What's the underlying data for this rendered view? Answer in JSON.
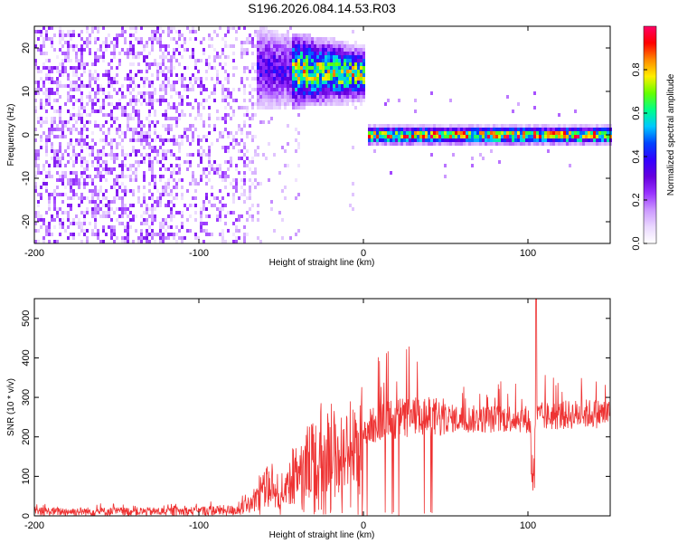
{
  "figure_title": "S196.2026.084.14.53.R03",
  "chart_data": [
    {
      "type": "heatmap",
      "xlabel": "Height of straight line (km)",
      "ylabel": "Frequency (Hz)",
      "xlim": [
        -200,
        150
      ],
      "ylim": [
        -25,
        25
      ],
      "xticks": [
        -200,
        -100,
        0,
        100
      ],
      "xtick_labels": [
        "-200",
        "-100",
        "0",
        "100"
      ],
      "yticks": [
        -20,
        -10,
        0,
        10,
        20
      ],
      "ytick_labels": [
        "-20",
        "-10",
        "0",
        "10",
        "20"
      ],
      "features": [
        {
          "name": "noise-region",
          "x_range": [
            -200,
            -65
          ],
          "freq_range": [
            -25,
            25
          ],
          "amplitude": [
            0.05,
            0.25
          ]
        },
        {
          "name": "rising-band",
          "x_range": [
            -80,
            0
          ],
          "center_freq": 16,
          "amplitude": [
            0.2,
            0.9
          ]
        },
        {
          "name": "stable-band",
          "x_range": [
            2,
            150
          ],
          "center_freq": 0,
          "amplitude": [
            0.4,
            1.0
          ]
        }
      ],
      "colorbar": {
        "label": "Normalized spectral amplitude",
        "range": [
          0,
          1
        ],
        "ticks": [
          0.0,
          0.2,
          0.4,
          0.6,
          0.8
        ],
        "tick_labels": [
          "0.0",
          "0.2",
          "0.4",
          "0.6",
          "0.8"
        ],
        "colors": [
          "#ffffff",
          "#ead8ff",
          "#cc99ff",
          "#9933ff",
          "#6600dd",
          "#3300ff",
          "#0044ff",
          "#00c8ff",
          "#00ff88",
          "#66ff00",
          "#ffee00",
          "#ff8800",
          "#ff0000",
          "#ff0066"
        ]
      }
    },
    {
      "type": "line",
      "xlabel": "Height of straight line (km)",
      "ylabel": "SNR (10 * v/v)",
      "xlim": [
        -200,
        150
      ],
      "ylim": [
        0,
        550
      ],
      "xticks": [
        -200,
        -100,
        0,
        100
      ],
      "xtick_labels": [
        "-200",
        "-100",
        "0",
        "100"
      ],
      "yticks": [
        0,
        100,
        200,
        300,
        400,
        500
      ],
      "ytick_labels": [
        "0",
        "100",
        "200",
        "300",
        "400",
        "500"
      ],
      "series": [
        {
          "name": "SNR",
          "color": "#ee3333",
          "x": [
            -200,
            -180,
            -160,
            -140,
            -120,
            -100,
            -90,
            -80,
            -75,
            -70,
            -65,
            -60,
            -55,
            -50,
            -45,
            -40,
            -35,
            -30,
            -25,
            -20,
            -15,
            -10,
            -5,
            0,
            5,
            10,
            15,
            20,
            25,
            30,
            35,
            40,
            45,
            50,
            60,
            70,
            80,
            90,
            100,
            103,
            105,
            108,
            110,
            120,
            130,
            140,
            150
          ],
          "values": [
            20,
            20,
            20,
            20,
            20,
            22,
            25,
            25,
            30,
            40,
            60,
            90,
            110,
            80,
            120,
            150,
            170,
            200,
            230,
            220,
            200,
            210,
            220,
            230,
            240,
            250,
            255,
            260,
            262,
            262,
            262,
            262,
            262,
            258,
            255,
            255,
            255,
            258,
            255,
            210,
            260,
            262,
            262,
            265,
            268,
            270,
            270
          ]
        }
      ]
    }
  ]
}
